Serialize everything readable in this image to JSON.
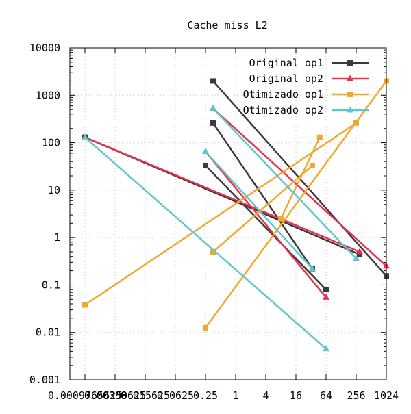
{
  "chart_data": {
    "type": "line",
    "title": "Cache miss L2",
    "xlabel": "",
    "ylabel": "",
    "x_scale": "log2",
    "y_scale": "log10",
    "xlim": [
      0.00048828125,
      1024
    ],
    "ylim": [
      0.001,
      10000
    ],
    "grid": true,
    "legend_position": "top-right",
    "x_ticks": [
      0.0009765625,
      0.00390625,
      0.015625,
      0.0625,
      0.25,
      1,
      4,
      16,
      64,
      256,
      1024
    ],
    "x_tick_labels": [
      "0.0009765625",
      "0.00390625",
      "0.015625",
      "0.0625",
      "0.25",
      "1",
      "4",
      "16",
      "64",
      "256",
      "1024"
    ],
    "y_ticks": [
      0.001,
      0.01,
      0.1,
      1,
      10,
      100,
      1000,
      10000
    ],
    "y_tick_labels": [
      "0.001",
      "0.01",
      "0.1",
      "1",
      "10",
      "100",
      "1000",
      "10000"
    ],
    "series": [
      {
        "name": "Original op1",
        "color": "#3a3a3a",
        "marker": "square",
        "segments": [
          [
            [
              0.0009765625,
              130
            ],
            [
              300,
              0.44
            ]
          ],
          [
            [
              0.25,
              33
            ],
            [
              64,
              0.08
            ]
          ],
          [
            [
              0.3535,
              260
            ],
            [
              34,
              0.22
            ]
          ],
          [
            [
              0.3535,
              2000
            ],
            [
              1024,
              0.155
            ]
          ]
        ]
      },
      {
        "name": "Original op2",
        "color": "#e8304f",
        "marker": "triangle",
        "segments": [
          [
            [
              0.0009765625,
              130
            ],
            [
              300,
              0.5
            ]
          ],
          [
            [
              0.25,
              65
            ],
            [
              64,
              0.055
            ]
          ],
          [
            [
              0.3535,
              530
            ],
            [
              1024,
              0.25
            ]
          ]
        ]
      },
      {
        "name": "Otimizado op1",
        "color": "#f0a830",
        "marker": "square",
        "segments": [
          [
            [
              0.0009765625,
              0.038
            ],
            [
              256,
              260
            ]
          ],
          [
            [
              0.3535,
              0.5
            ],
            [
              34,
              33
            ]
          ],
          [
            [
              0.25,
              0.0125
            ],
            [
              1024,
              2000
            ]
          ],
          [
            [
              8,
              2.5
            ],
            [
              48,
              130
            ]
          ]
        ]
      },
      {
        "name": "Otimizado op2",
        "color": "#5cc8cc",
        "marker": "triangle",
        "segments": [
          [
            [
              0.0009765625,
              130
            ],
            [
              64,
              0.0045
            ]
          ],
          [
            [
              0.25,
              65
            ],
            [
              34,
              0.22
            ]
          ],
          [
            [
              0.3535,
              530
            ],
            [
              256,
              0.36
            ]
          ]
        ]
      }
    ]
  }
}
